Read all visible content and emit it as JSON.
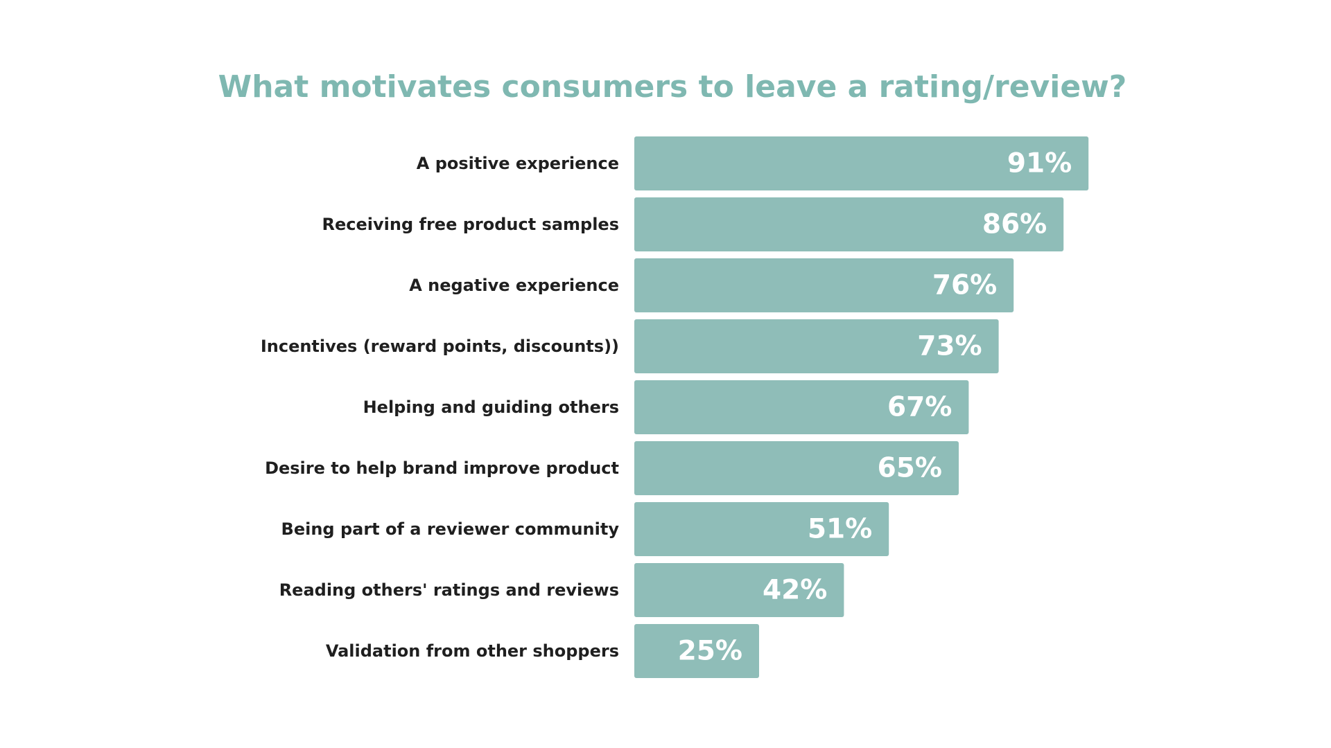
{
  "chart_data": {
    "type": "bar",
    "orientation": "horizontal",
    "title": "What motivates consumers to leave a rating/review?",
    "categories": [
      "A positive experience",
      "Receiving free product samples",
      "A negative experience",
      "Incentives (reward points, discounts))",
      "Helping and guiding others",
      "Desire to help brand improve product",
      "Being part of a reviewer community",
      "Reading others' ratings and reviews",
      "Validation from other shoppers"
    ],
    "values": [
      91,
      86,
      76,
      73,
      67,
      65,
      51,
      42,
      25
    ],
    "value_labels": [
      "91%",
      "86%",
      "76%",
      "73%",
      "67%",
      "65%",
      "51%",
      "42%",
      "25%"
    ],
    "unit": "%",
    "xlim": [
      0,
      100
    ],
    "xlabel": "",
    "ylabel": "",
    "grid": false,
    "legend": "none",
    "colors": {
      "bar": "#8fbdb8",
      "title": "#7fb8b1",
      "label": "#1f1f1f",
      "value": "#ffffff"
    }
  }
}
